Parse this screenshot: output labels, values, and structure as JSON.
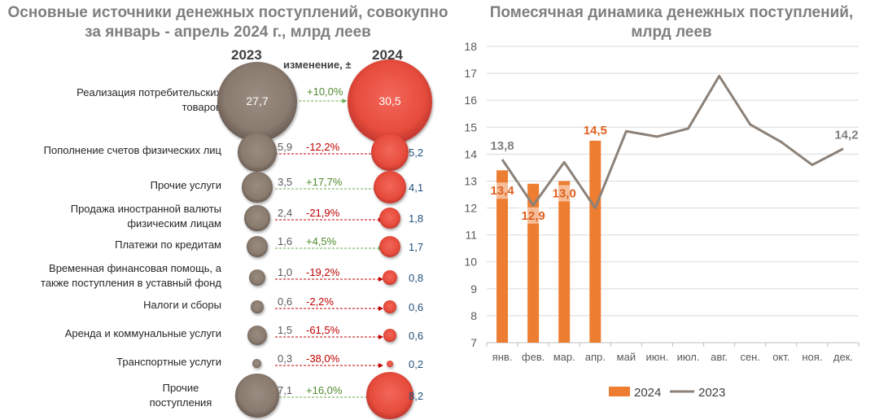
{
  "left": {
    "title": "Основные источники денежных поступлений, совокупно за январь - апрель 2024 г., млрд  леев",
    "year_a": "2023",
    "year_b": "2024",
    "change_header": "изменение, ±",
    "items": [
      {
        "label": "Реализация потребительских товаров",
        "v2023": "27,7",
        "v2024": "30,5",
        "change": "+10,0%",
        "sign": "pos",
        "n2023": 27.7,
        "n2024": 30.5
      },
      {
        "label": "Пополнение счетов физических лиц",
        "v2023": "5,9",
        "v2024": "5,2",
        "change": "-12,2%",
        "sign": "neg",
        "n2023": 5.9,
        "n2024": 5.2
      },
      {
        "label": "Прочие услуги",
        "v2023": "3,5",
        "v2024": "4,1",
        "change": "+17,7%",
        "sign": "pos",
        "n2023": 3.5,
        "n2024": 4.1
      },
      {
        "label": "Продажа иностранной валюты физическим лицам",
        "v2023": "2,4",
        "v2024": "1,8",
        "change": "-21,9%",
        "sign": "neg",
        "n2023": 2.4,
        "n2024": 1.8
      },
      {
        "label": "Платежи по кредитам",
        "v2023": "1,6",
        "v2024": "1,7",
        "change": "+4,5%",
        "sign": "pos",
        "n2023": 1.6,
        "n2024": 1.7
      },
      {
        "label": "Временная финансовая помощь, а также поступления в уставный фонд",
        "v2023": "1,0",
        "v2024": "0,8",
        "change": "-19,2%",
        "sign": "neg",
        "n2023": 1.0,
        "n2024": 0.8
      },
      {
        "label": "Налоги и сборы",
        "v2023": "0,6",
        "v2024": "0,6",
        "change": "-2,2%",
        "sign": "neg",
        "n2023": 0.6,
        "n2024": 0.6
      },
      {
        "label": "Аренда и коммунальные услуги",
        "v2023": "1,5",
        "v2024": "0,6",
        "change": "-61,5%",
        "sign": "neg",
        "n2023": 1.5,
        "n2024": 0.6
      },
      {
        "label": "Транспортные услуги",
        "v2023": "0,3",
        "v2024": "0,2",
        "change": "-38,0%",
        "sign": "neg",
        "n2023": 0.3,
        "n2024": 0.2
      },
      {
        "label": "Прочие поступления",
        "v2023": "7,1",
        "v2024": "8,2",
        "change": "+16,0%",
        "sign": "pos",
        "n2023": 7.1,
        "n2024": 8.2
      }
    ]
  },
  "right": {
    "title": "Помесячная динамика денежных поступлений, млрд леев"
  },
  "colors": {
    "bar_2024": "#ed7d31",
    "line_2023": "#8c8178",
    "bubble_2023": "#8a7b6f",
    "bubble_2024": "#e74c3c",
    "positive": "#4e8a2e",
    "negative": "#c00000"
  },
  "chart_data": [
    {
      "type": "bubble",
      "title": "Основные источники денежных поступлений, совокупно за январь - апрель 2024 г., млрд  леев",
      "categories": [
        "Реализация потребительских товаров",
        "Пополнение счетов физических лиц",
        "Прочие услуги",
        "Продажа иностранной валюты физическим лицам",
        "Платежи по кредитам",
        "Временная финансовая помощь, а также поступления в уставный фонд",
        "Налоги и сборы",
        "Аренда и коммунальные услуги",
        "Транспортные услуги",
        "Прочие поступления"
      ],
      "series": [
        {
          "name": "2023",
          "values": [
            27.7,
            5.9,
            3.5,
            2.4,
            1.6,
            1.0,
            0.6,
            1.5,
            0.3,
            7.1
          ]
        },
        {
          "name": "2024",
          "values": [
            30.5,
            5.2,
            4.1,
            1.8,
            1.7,
            0.8,
            0.6,
            0.6,
            0.2,
            8.2
          ]
        }
      ],
      "change_pct": [
        10.0,
        -12.2,
        17.7,
        -21.9,
        4.5,
        -19.2,
        -2.2,
        -61.5,
        -38.0,
        16.0
      ]
    },
    {
      "type": "bar",
      "title": "Помесячная динамика денежных поступлений, млрд леев",
      "categories": [
        "янв.",
        "фев.",
        "мар.",
        "апр.",
        "май",
        "июн.",
        "июл.",
        "авг.",
        "сен.",
        "окт.",
        "ноя.",
        "дек."
      ],
      "series": [
        {
          "name": "2024",
          "type": "bar",
          "values": [
            13.4,
            12.9,
            13.0,
            14.5,
            null,
            null,
            null,
            null,
            null,
            null,
            null,
            null
          ]
        },
        {
          "name": "2023",
          "type": "line",
          "values": [
            13.8,
            12.1,
            13.7,
            12.0,
            14.85,
            14.65,
            14.95,
            16.9,
            15.1,
            14.45,
            13.6,
            14.2
          ]
        }
      ],
      "data_labels": {
        "bar": [
          "13,4",
          "12,9",
          "13,0",
          "14,5"
        ],
        "line_first": "13,8",
        "line_last": "14,2"
      },
      "ylim": [
        7,
        18
      ],
      "yticks": [
        "7",
        "8",
        "9",
        "10",
        "11",
        "12",
        "13",
        "14",
        "15",
        "16",
        "17",
        "18"
      ],
      "grid": true,
      "legend": "bottom"
    }
  ]
}
